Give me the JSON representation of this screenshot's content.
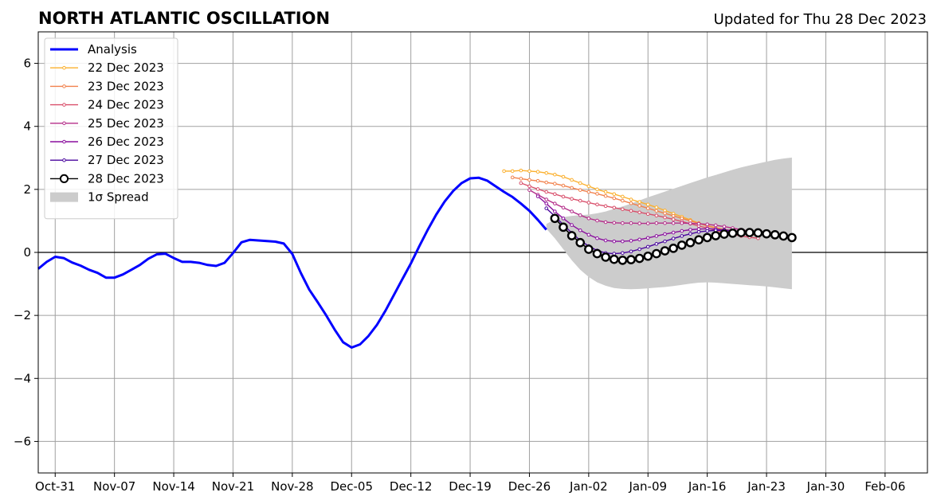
{
  "chart_data": {
    "type": "line",
    "title": "NORTH ATLANTIC OSCILLATION",
    "subtitle": "Updated for Thu 28 Dec 2023",
    "xlabel": "",
    "ylabel": "",
    "xlim": [
      "2023-10-29",
      "2024-02-11"
    ],
    "ylim": [
      -7,
      7
    ],
    "grid": true,
    "legend_position": "upper-left",
    "x_ticks": [
      {
        "date": "2023-10-31",
        "label": "Oct-31"
      },
      {
        "date": "2023-11-07",
        "label": "Nov-07"
      },
      {
        "date": "2023-11-14",
        "label": "Nov-14"
      },
      {
        "date": "2023-11-21",
        "label": "Nov-21"
      },
      {
        "date": "2023-11-28",
        "label": "Nov-28"
      },
      {
        "date": "2023-12-05",
        "label": "Dec-05"
      },
      {
        "date": "2023-12-12",
        "label": "Dec-12"
      },
      {
        "date": "2023-12-19",
        "label": "Dec-19"
      },
      {
        "date": "2023-12-26",
        "label": "Dec-26"
      },
      {
        "date": "2024-01-02",
        "label": "Jan-02"
      },
      {
        "date": "2024-01-09",
        "label": "Jan-09"
      },
      {
        "date": "2024-01-16",
        "label": "Jan-16"
      },
      {
        "date": "2024-01-23",
        "label": "Jan-23"
      },
      {
        "date": "2024-01-30",
        "label": "Jan-30"
      },
      {
        "date": "2024-02-06",
        "label": "Feb-06"
      }
    ],
    "y_ticks": [
      {
        "value": -6,
        "label": "−6"
      },
      {
        "value": -4,
        "label": "−4"
      },
      {
        "value": -2,
        "label": "−2"
      },
      {
        "value": 0,
        "label": "0"
      },
      {
        "value": 2,
        "label": "2"
      },
      {
        "value": 4,
        "label": "4"
      },
      {
        "value": 6,
        "label": "6"
      }
    ],
    "analysis": {
      "name": "Analysis",
      "color": "#0000ff",
      "start_date": "2023-10-29",
      "values": [
        -0.52,
        -0.3,
        -0.14,
        -0.18,
        -0.32,
        -0.42,
        -0.55,
        -0.65,
        -0.8,
        -0.8,
        -0.7,
        -0.55,
        -0.4,
        -0.2,
        -0.06,
        -0.04,
        -0.18,
        -0.3,
        -0.3,
        -0.33,
        -0.4,
        -0.43,
        -0.33,
        -0.02,
        0.32,
        0.4,
        0.38,
        0.36,
        0.34,
        0.28,
        -0.05,
        -0.65,
        -1.18,
        -1.58,
        -2.0,
        -2.45,
        -2.85,
        -3.02,
        -2.92,
        -2.65,
        -2.3,
        -1.85,
        -1.35,
        -0.85,
        -0.35,
        0.2,
        0.72,
        1.2,
        1.62,
        1.95,
        2.2,
        2.35,
        2.37,
        2.28,
        2.1,
        1.92,
        1.76,
        1.55,
        1.32,
        1.03,
        0.72
      ]
    },
    "forecasts": [
      {
        "name": "22 Dec 2023",
        "color": "#fbb02d",
        "start_date": "2023-12-23",
        "marker": "small",
        "values": [
          2.58,
          2.58,
          2.6,
          2.58,
          2.56,
          2.52,
          2.47,
          2.4,
          2.3,
          2.2,
          2.1,
          2.0,
          1.92,
          1.85,
          1.77,
          1.68,
          1.6,
          1.52,
          1.43,
          1.33,
          1.23,
          1.13,
          1.03,
          0.93,
          0.85,
          0.78,
          0.73,
          0.69,
          0.65,
          0.61,
          0.57
        ]
      },
      {
        "name": "23 Dec 2023",
        "color": "#f1814c",
        "start_date": "2023-12-24",
        "marker": "small",
        "values": [
          2.38,
          2.34,
          2.3,
          2.27,
          2.22,
          2.18,
          2.12,
          2.05,
          1.98,
          1.92,
          1.86,
          1.79,
          1.72,
          1.64,
          1.56,
          1.48,
          1.4,
          1.32,
          1.24,
          1.16,
          1.08,
          1.0,
          0.92,
          0.84,
          0.77,
          0.7,
          0.65,
          0.61,
          0.57,
          0.54
        ]
      },
      {
        "name": "24 Dec 2023",
        "color": "#d94f6b",
        "start_date": "2023-12-25",
        "marker": "small",
        "values": [
          2.2,
          2.1,
          2.01,
          1.92,
          1.85,
          1.77,
          1.7,
          1.64,
          1.58,
          1.52,
          1.47,
          1.42,
          1.37,
          1.32,
          1.27,
          1.22,
          1.17,
          1.11,
          1.05,
          0.98,
          0.91,
          0.84,
          0.77,
          0.7,
          0.63,
          0.57,
          0.52,
          0.48,
          0.45
        ]
      },
      {
        "name": "25 Dec 2023",
        "color": "#b42e8a",
        "start_date": "2023-12-26",
        "marker": "small",
        "values": [
          1.98,
          1.83,
          1.68,
          1.55,
          1.42,
          1.3,
          1.18,
          1.08,
          1.01,
          0.96,
          0.94,
          0.93,
          0.93,
          0.92,
          0.92,
          0.93,
          0.93,
          0.93,
          0.93,
          0.92,
          0.91,
          0.89,
          0.86,
          0.82,
          0.77,
          0.72,
          0.67,
          0.62
        ]
      },
      {
        "name": "26 Dec 2023",
        "color": "#8a0f9e",
        "start_date": "2023-12-27",
        "marker": "small",
        "values": [
          1.78,
          1.55,
          1.3,
          1.08,
          0.87,
          0.7,
          0.56,
          0.45,
          0.38,
          0.35,
          0.35,
          0.37,
          0.41,
          0.46,
          0.52,
          0.58,
          0.63,
          0.68,
          0.72,
          0.74,
          0.75,
          0.74,
          0.72,
          0.69,
          0.65,
          0.61,
          0.57
        ]
      },
      {
        "name": "27 Dec 2023",
        "color": "#4a069e",
        "start_date": "2023-12-28",
        "marker": "small",
        "values": [
          1.4,
          1.15,
          0.88,
          0.62,
          0.38,
          0.2,
          0.06,
          -0.02,
          -0.04,
          -0.02,
          0.03,
          0.1,
          0.18,
          0.27,
          0.35,
          0.44,
          0.52,
          0.59,
          0.65,
          0.68,
          0.7,
          0.7,
          0.68,
          0.65,
          0.61,
          0.57
        ]
      },
      {
        "name": "28 Dec 2023",
        "color": "#000000",
        "start_date": "2023-12-29",
        "marker": "large",
        "values": [
          1.08,
          0.8,
          0.53,
          0.31,
          0.1,
          -0.04,
          -0.15,
          -0.22,
          -0.25,
          -0.23,
          -0.19,
          -0.12,
          -0.04,
          0.05,
          0.13,
          0.23,
          0.31,
          0.4,
          0.47,
          0.53,
          0.58,
          0.61,
          0.63,
          0.63,
          0.62,
          0.59,
          0.56,
          0.52,
          0.47
        ]
      }
    ],
    "spread": {
      "name": "1σ Spread",
      "color": "#cccccc",
      "start_date": "2023-12-28",
      "upper": [
        0.9,
        1.05,
        1.12,
        1.16,
        1.18,
        1.2,
        1.24,
        1.3,
        1.38,
        1.46,
        1.55,
        1.65,
        1.75,
        1.84,
        1.93,
        2.02,
        2.11,
        2.2,
        2.29,
        2.38,
        2.46,
        2.54,
        2.62,
        2.7,
        2.76,
        2.82,
        2.88,
        2.94,
        2.98,
        3.01
      ],
      "lower": [
        0.75,
        0.45,
        0.1,
        -0.25,
        -0.55,
        -0.78,
        -0.95,
        -1.06,
        -1.13,
        -1.16,
        -1.17,
        -1.16,
        -1.14,
        -1.12,
        -1.1,
        -1.07,
        -1.03,
        -0.99,
        -0.96,
        -0.95,
        -0.96,
        -0.98,
        -1.0,
        -1.02,
        -1.04,
        -1.06,
        -1.08,
        -1.11,
        -1.14,
        -1.17
      ]
    }
  }
}
